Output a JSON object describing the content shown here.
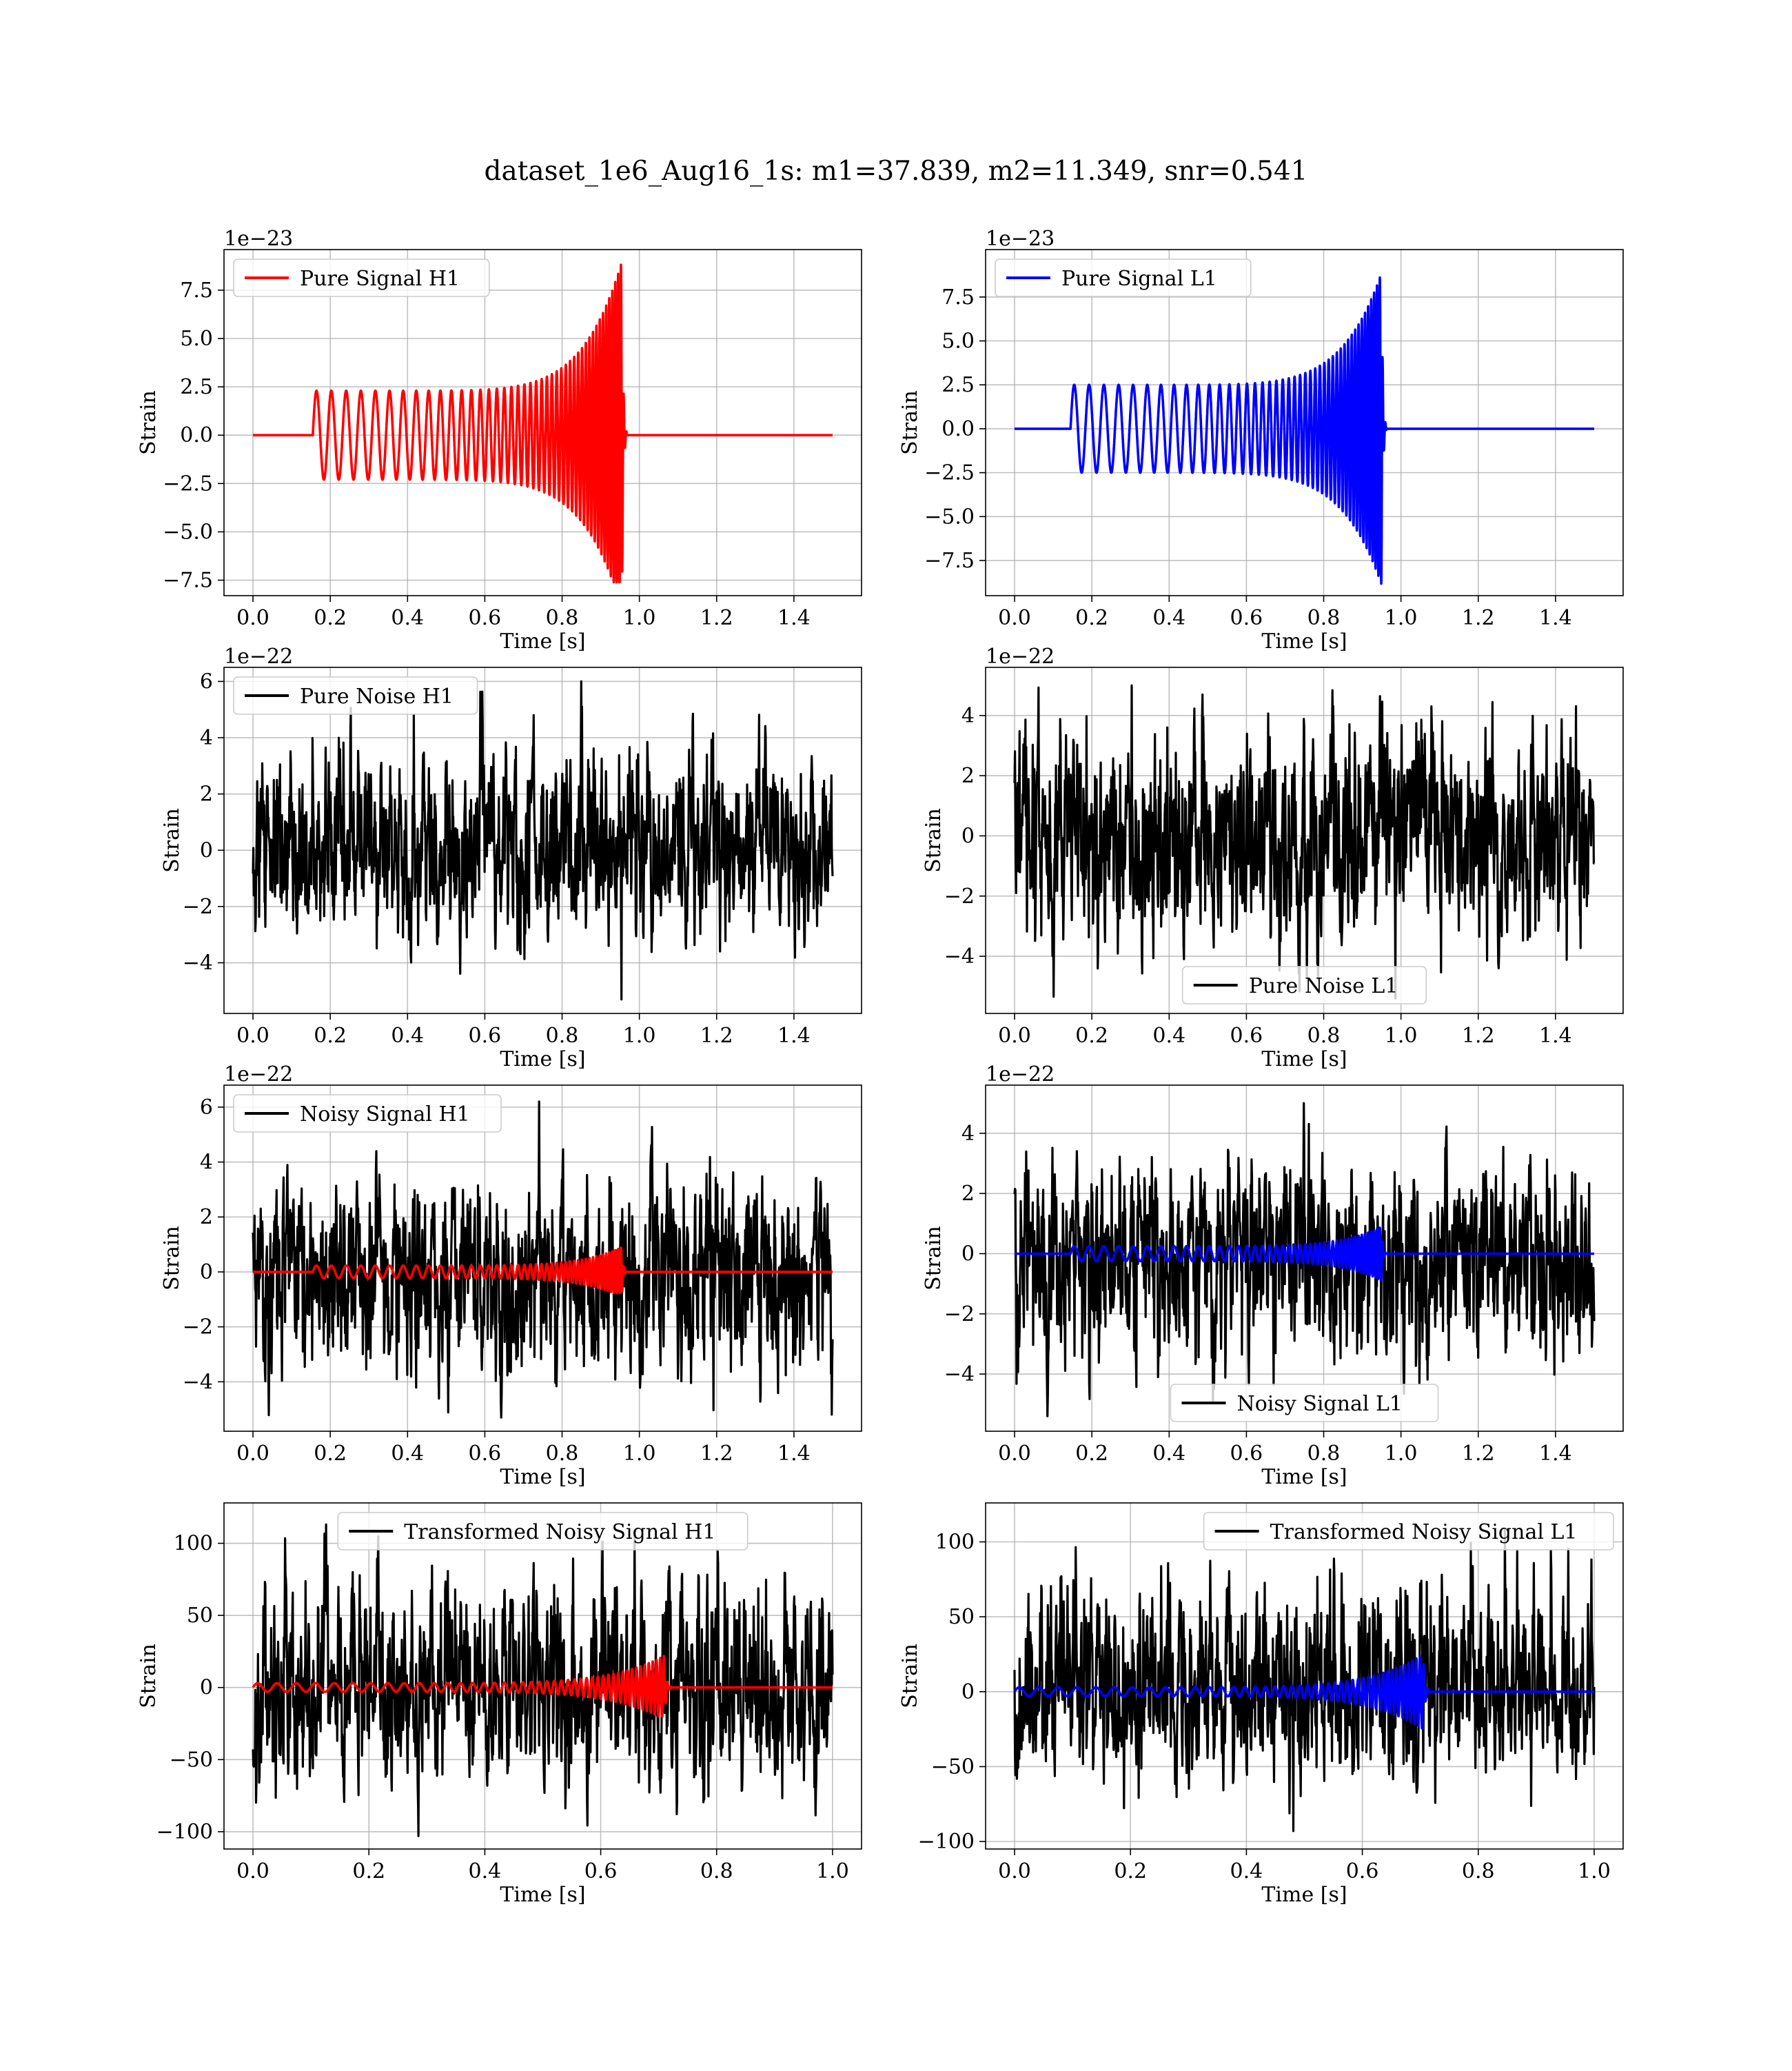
{
  "figure": {
    "title": "dataset_1e6_Aug16_1s: m1=37.839, m2=11.349, snr=0.541"
  },
  "chart_data": [
    {
      "type": "line",
      "id": "pure-signal-h1",
      "xlabel": "Time [s]",
      "ylabel": "Strain",
      "offset_text": "1e−23",
      "xlim": [
        -0.075,
        1.575
      ],
      "ylim": [
        -8.3,
        9.6
      ],
      "xticks": [
        0.0,
        0.2,
        0.4,
        0.6,
        0.8,
        1.0,
        1.2,
        1.4
      ],
      "xtick_labels": [
        "0.0",
        "0.2",
        "0.4",
        "0.6",
        "0.8",
        "1.0",
        "1.2",
        "1.4"
      ],
      "yticks": [
        -7.5,
        -5.0,
        -2.5,
        0.0,
        2.5,
        5.0,
        7.5
      ],
      "ytick_labels": [
        "−7.5",
        "−5.0",
        "−2.5",
        "0.0",
        "2.5",
        "5.0",
        "7.5"
      ],
      "grid": true,
      "legend_position": "upper-left",
      "series": [
        {
          "name": "Pure Signal H1",
          "color": "#ff0000",
          "kind": "chirp",
          "duration": 1.5,
          "start": 0.155,
          "merger": 0.955,
          "start_amplitude": 2.3,
          "peak_amplitude": 9.0,
          "min_value": -7.6,
          "start_frequency": 26,
          "end_frequency": 140
        }
      ]
    },
    {
      "type": "line",
      "id": "pure-signal-l1",
      "xlabel": "Time [s]",
      "ylabel": "Strain",
      "offset_text": "1e−23",
      "xlim": [
        -0.075,
        1.575
      ],
      "ylim": [
        -9.5,
        10.2
      ],
      "xticks": [
        0.0,
        0.2,
        0.4,
        0.6,
        0.8,
        1.0,
        1.2,
        1.4
      ],
      "xtick_labels": [
        "0.0",
        "0.2",
        "0.4",
        "0.6",
        "0.8",
        "1.0",
        "1.2",
        "1.4"
      ],
      "yticks": [
        -7.5,
        -5.0,
        -2.5,
        0.0,
        2.5,
        5.0,
        7.5
      ],
      "ytick_labels": [
        "−7.5",
        "−5.0",
        "−2.5",
        "0.0",
        "2.5",
        "5.0",
        "7.5"
      ],
      "grid": true,
      "legend_position": "upper-left",
      "series": [
        {
          "name": "Pure Signal L1",
          "color": "#0000ff",
          "kind": "chirp",
          "duration": 1.5,
          "start": 0.145,
          "merger": 0.95,
          "start_amplitude": 2.5,
          "peak_amplitude": 8.9,
          "min_value": -8.9,
          "start_frequency": 26,
          "end_frequency": 140
        }
      ]
    },
    {
      "type": "line",
      "id": "pure-noise-h1",
      "xlabel": "Time [s]",
      "ylabel": "Strain",
      "offset_text": "1e−22",
      "xlim": [
        -0.075,
        1.575
      ],
      "ylim": [
        -5.8,
        6.5
      ],
      "xticks": [
        0.0,
        0.2,
        0.4,
        0.6,
        0.8,
        1.0,
        1.2,
        1.4
      ],
      "xtick_labels": [
        "0.0",
        "0.2",
        "0.4",
        "0.6",
        "0.8",
        "1.0",
        "1.2",
        "1.4"
      ],
      "yticks": [
        -4,
        -2,
        0,
        2,
        4,
        6
      ],
      "ytick_labels": [
        "−4",
        "−2",
        "0",
        "2",
        "4",
        "6"
      ],
      "grid": true,
      "legend_position": "upper-left",
      "series": [
        {
          "name": "Pure Noise H1",
          "color": "#000000",
          "kind": "noise",
          "duration": 1.5,
          "max_value": 6.0,
          "min_value": -5.3
        }
      ]
    },
    {
      "type": "line",
      "id": "pure-noise-l1",
      "xlabel": "Time [s]",
      "ylabel": "Strain",
      "offset_text": "1e−22",
      "xlim": [
        -0.075,
        1.575
      ],
      "ylim": [
        -5.9,
        5.6
      ],
      "xticks": [
        0.0,
        0.2,
        0.4,
        0.6,
        0.8,
        1.0,
        1.2,
        1.4
      ],
      "xtick_labels": [
        "0.0",
        "0.2",
        "0.4",
        "0.6",
        "0.8",
        "1.0",
        "1.2",
        "1.4"
      ],
      "yticks": [
        -4,
        -2,
        0,
        2,
        4
      ],
      "ytick_labels": [
        "−4",
        "−2",
        "0",
        "2",
        "4"
      ],
      "grid": true,
      "legend_position": "lower-center",
      "series": [
        {
          "name": "Pure Noise L1",
          "color": "#000000",
          "kind": "noise",
          "duration": 1.5,
          "max_value": 5.0,
          "min_value": -5.4
        }
      ]
    },
    {
      "type": "line",
      "id": "noisy-signal-h1",
      "xlabel": "Time [s]",
      "ylabel": "Strain",
      "offset_text": "1e−22",
      "xlim": [
        -0.075,
        1.575
      ],
      "ylim": [
        -5.8,
        6.8
      ],
      "xticks": [
        0.0,
        0.2,
        0.4,
        0.6,
        0.8,
        1.0,
        1.2,
        1.4
      ],
      "xtick_labels": [
        "0.0",
        "0.2",
        "0.4",
        "0.6",
        "0.8",
        "1.0",
        "1.2",
        "1.4"
      ],
      "yticks": [
        -4,
        -2,
        0,
        2,
        4,
        6
      ],
      "ytick_labels": [
        "−4",
        "−2",
        "0",
        "2",
        "4",
        "6"
      ],
      "grid": true,
      "legend_position": "upper-left",
      "series": [
        {
          "name": "Noisy Signal H1",
          "color": "#000000",
          "kind": "noise",
          "duration": 1.5,
          "max_value": 6.2,
          "min_value": -5.3
        },
        {
          "color": "#ff0000",
          "kind": "chirp",
          "duration": 1.5,
          "start": 0.155,
          "merger": 0.955,
          "start_amplitude": 0.23,
          "peak_amplitude": 0.9,
          "min_value": -0.76,
          "start_frequency": 26,
          "end_frequency": 140
        }
      ]
    },
    {
      "type": "line",
      "id": "noisy-signal-l1",
      "xlabel": "Time [s]",
      "ylabel": "Strain",
      "offset_text": "1e−22",
      "xlim": [
        -0.075,
        1.575
      ],
      "ylim": [
        -5.9,
        5.6
      ],
      "xticks": [
        0.0,
        0.2,
        0.4,
        0.6,
        0.8,
        1.0,
        1.2,
        1.4
      ],
      "xtick_labels": [
        "0.0",
        "0.2",
        "0.4",
        "0.6",
        "0.8",
        "1.0",
        "1.2",
        "1.4"
      ],
      "yticks": [
        -4,
        -2,
        0,
        2,
        4
      ],
      "ytick_labels": [
        "−4",
        "−2",
        "0",
        "2",
        "4"
      ],
      "grid": true,
      "legend_position": "lower-center",
      "series": [
        {
          "name": "Noisy Signal L1",
          "color": "#000000",
          "kind": "noise",
          "duration": 1.5,
          "max_value": 5.0,
          "min_value": -5.4
        },
        {
          "color": "#0000ff",
          "kind": "chirp",
          "duration": 1.5,
          "start": 0.145,
          "merger": 0.95,
          "start_amplitude": 0.25,
          "peak_amplitude": 0.89,
          "min_value": -0.89,
          "start_frequency": 26,
          "end_frequency": 140
        }
      ]
    },
    {
      "type": "line",
      "id": "transformed-noisy-signal-h1",
      "xlabel": "Time [s]",
      "ylabel": "Strain",
      "offset_text": "",
      "xlim": [
        -0.05,
        1.05
      ],
      "ylim": [
        -112,
        128
      ],
      "xticks": [
        0.0,
        0.2,
        0.4,
        0.6,
        0.8,
        1.0
      ],
      "xtick_labels": [
        "0.0",
        "0.2",
        "0.4",
        "0.6",
        "0.8",
        "1.0"
      ],
      "yticks": [
        -100,
        -50,
        0,
        50,
        100
      ],
      "ytick_labels": [
        "−100",
        "−50",
        "0",
        "50",
        "100"
      ],
      "grid": true,
      "legend_position": "upper-center",
      "series": [
        {
          "name": "Transformed Noisy Signal H1",
          "color": "#000000",
          "kind": "noise",
          "duration": 1.0,
          "max_value": 113,
          "min_value": -103
        },
        {
          "color": "#ff0000",
          "kind": "chirp",
          "duration": 1.0,
          "start": 0.0,
          "merger": 0.71,
          "start_amplitude": 3,
          "peak_amplitude": 22,
          "min_value": -20,
          "start_frequency": 30,
          "end_frequency": 160
        }
      ]
    },
    {
      "type": "line",
      "id": "transformed-noisy-signal-l1",
      "xlabel": "Time [s]",
      "ylabel": "Strain",
      "offset_text": "",
      "xlim": [
        -0.05,
        1.05
      ],
      "ylim": [
        -105,
        126
      ],
      "xticks": [
        0.0,
        0.2,
        0.4,
        0.6,
        0.8,
        1.0
      ],
      "xtick_labels": [
        "0.0",
        "0.2",
        "0.4",
        "0.6",
        "0.8",
        "1.0"
      ],
      "yticks": [
        -100,
        -50,
        0,
        50,
        100
      ],
      "ytick_labels": [
        "−100",
        "−50",
        "0",
        "50",
        "100"
      ],
      "grid": true,
      "legend_position": "upper-right",
      "series": [
        {
          "name": "Transformed Noisy Signal L1",
          "color": "#000000",
          "kind": "noise",
          "duration": 1.0,
          "max_value": 108,
          "min_value": -93
        },
        {
          "color": "#0000ff",
          "kind": "chirp",
          "duration": 1.0,
          "start": 0.0,
          "merger": 0.705,
          "start_amplitude": 3,
          "peak_amplitude": 25,
          "min_value": -25,
          "start_frequency": 30,
          "end_frequency": 160
        }
      ]
    }
  ]
}
